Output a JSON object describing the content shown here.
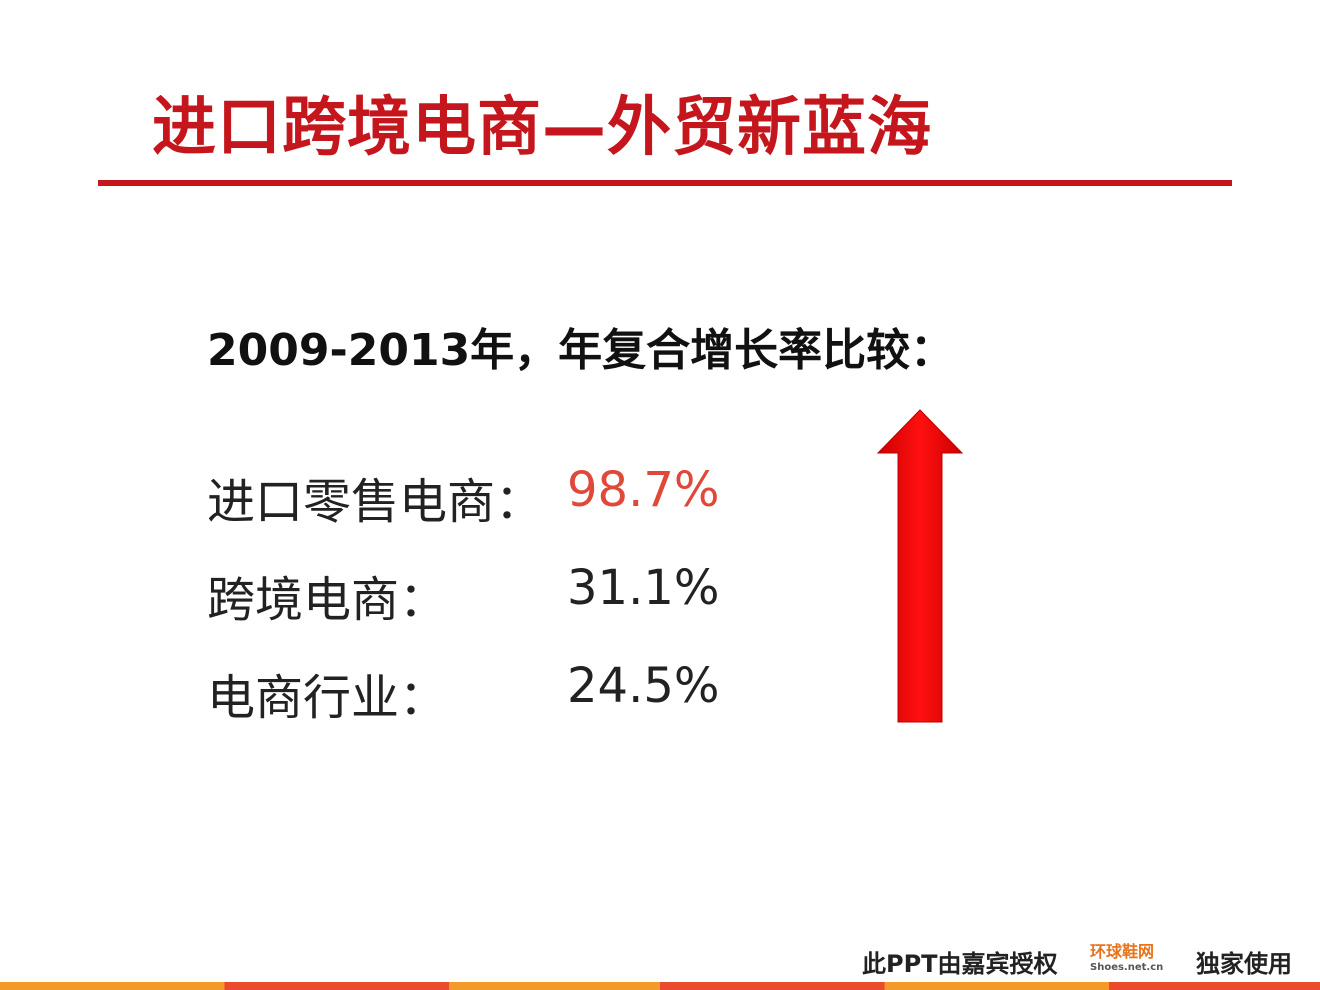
{
  "header": {
    "title": "进口跨境电商—外贸新蓝海"
  },
  "body": {
    "subtitle": "2009-2013年，年复合增长率比较：",
    "rows": [
      {
        "label": "进口零售电商：",
        "value": "98.7%"
      },
      {
        "label": "跨境电商：",
        "value": "31.1%"
      },
      {
        "label": "电商行业：",
        "value": "24.5%"
      }
    ]
  },
  "footer": {
    "notice": "此PPT由嘉宾授权",
    "logo": "环球鞋网",
    "logo_url": "Shoes.net.cn",
    "suffix": "独家使用"
  }
}
